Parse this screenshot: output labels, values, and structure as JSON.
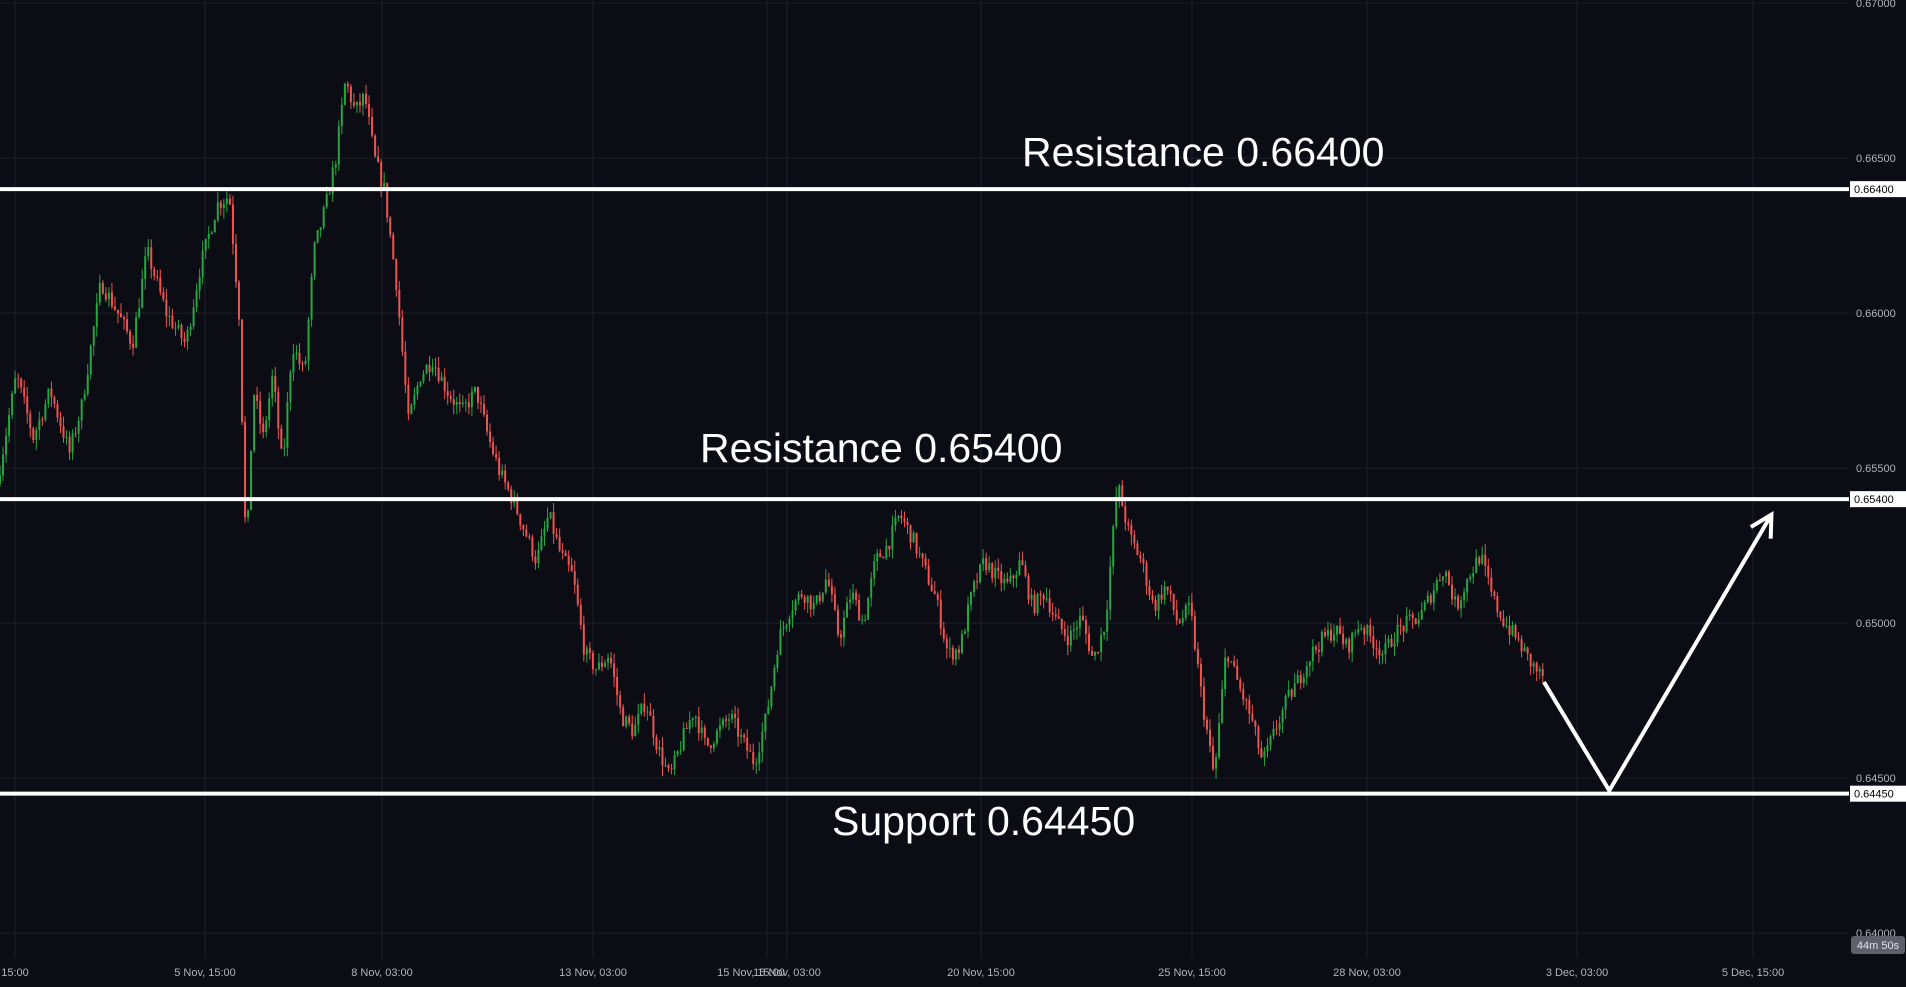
{
  "chart_data": {
    "type": "candlestick",
    "ylim": [
      0.6392,
      0.6701
    ],
    "y_ticks": [
      {
        "value": 0.67,
        "label": "0.67000"
      },
      {
        "value": 0.665,
        "label": "0.66500"
      },
      {
        "value": 0.66,
        "label": "0.66000"
      },
      {
        "value": 0.655,
        "label": "0.65500"
      },
      {
        "value": 0.65,
        "label": "0.65000"
      },
      {
        "value": 0.645,
        "label": "0.64500"
      },
      {
        "value": 0.64,
        "label": "0.64000"
      }
    ],
    "x_ticks": [
      "15:00",
      "5 Nov, 15:00",
      "8 Nov, 03:00",
      "13 Nov, 03:00",
      "15 Nov, 15:00",
      "16 Nov, 03:00",
      "20 Nov, 15:00",
      "25 Nov, 15:00",
      "28 Nov, 03:00",
      "3 Dec, 03:00",
      "5 Dec, 15:00"
    ],
    "grid": true,
    "levels": [
      {
        "value": 0.664,
        "label": "0.66400",
        "annotation": "Resistance 0.66400"
      },
      {
        "value": 0.654,
        "label": "0.65400",
        "annotation": "Resistance 0.65400"
      },
      {
        "value": 0.6445,
        "label": "0.64450",
        "annotation": "Support 0.64450"
      }
    ],
    "price_path": [
      [
        0,
        0.6545
      ],
      [
        0.8,
        0.658
      ],
      [
        1.5,
        0.656
      ],
      [
        2.2,
        0.6575
      ],
      [
        3.0,
        0.6555
      ],
      [
        3.5,
        0.657
      ],
      [
        4.3,
        0.661
      ],
      [
        5.0,
        0.66
      ],
      [
        5.6,
        0.659
      ],
      [
        6.2,
        0.662
      ],
      [
        7.0,
        0.66
      ],
      [
        7.8,
        0.659
      ],
      [
        8.4,
        0.6615
      ],
      [
        9.1,
        0.6635
      ],
      [
        9.6,
        0.6638
      ],
      [
        10.0,
        0.66
      ],
      [
        10.3,
        0.652
      ],
      [
        10.6,
        0.6575
      ],
      [
        11.0,
        0.656
      ],
      [
        11.4,
        0.658
      ],
      [
        11.8,
        0.655
      ],
      [
        12.2,
        0.659
      ],
      [
        12.7,
        0.658
      ],
      [
        13.1,
        0.662
      ],
      [
        13.6,
        0.6635
      ],
      [
        14.0,
        0.665
      ],
      [
        14.4,
        0.6675
      ],
      [
        14.8,
        0.6665
      ],
      [
        15.2,
        0.667
      ],
      [
        15.6,
        0.665
      ],
      [
        16.0,
        0.664
      ],
      [
        16.5,
        0.661
      ],
      [
        17.0,
        0.6565
      ],
      [
        17.5,
        0.658
      ],
      [
        18.0,
        0.6585
      ],
      [
        18.6,
        0.6575
      ],
      [
        19.2,
        0.6568
      ],
      [
        19.8,
        0.6575
      ],
      [
        20.3,
        0.656
      ],
      [
        20.8,
        0.6548
      ],
      [
        21.3,
        0.654
      ],
      [
        21.8,
        0.653
      ],
      [
        22.3,
        0.652
      ],
      [
        22.8,
        0.6535
      ],
      [
        23.3,
        0.6522
      ],
      [
        23.8,
        0.6515
      ],
      [
        24.3,
        0.649
      ],
      [
        24.8,
        0.6485
      ],
      [
        25.3,
        0.649
      ],
      [
        25.8,
        0.647
      ],
      [
        26.3,
        0.6465
      ],
      [
        26.8,
        0.6475
      ],
      [
        27.3,
        0.646
      ],
      [
        27.8,
        0.645
      ],
      [
        28.3,
        0.6462
      ],
      [
        28.8,
        0.6472
      ],
      [
        29.3,
        0.646
      ],
      [
        29.8,
        0.6465
      ],
      [
        30.3,
        0.647
      ],
      [
        30.8,
        0.6462
      ],
      [
        31.3,
        0.6455
      ],
      [
        31.8,
        0.647
      ],
      [
        32.3,
        0.6495
      ],
      [
        32.8,
        0.6505
      ],
      [
        33.3,
        0.651
      ],
      [
        33.8,
        0.6505
      ],
      [
        34.3,
        0.6515
      ],
      [
        34.8,
        0.6495
      ],
      [
        35.3,
        0.651
      ],
      [
        35.8,
        0.65
      ],
      [
        36.3,
        0.652
      ],
      [
        36.8,
        0.6525
      ],
      [
        37.3,
        0.6535
      ],
      [
        37.8,
        0.6528
      ],
      [
        38.3,
        0.6518
      ],
      [
        38.8,
        0.6508
      ],
      [
        39.3,
        0.649
      ],
      [
        39.8,
        0.6492
      ],
      [
        40.3,
        0.651
      ],
      [
        40.8,
        0.652
      ],
      [
        41.3,
        0.6515
      ],
      [
        41.8,
        0.6512
      ],
      [
        42.3,
        0.652
      ],
      [
        42.8,
        0.6505
      ],
      [
        43.3,
        0.651
      ],
      [
        43.8,
        0.65
      ],
      [
        44.3,
        0.6495
      ],
      [
        44.8,
        0.6502
      ],
      [
        45.3,
        0.6488
      ],
      [
        45.8,
        0.65
      ],
      [
        46.3,
        0.6545
      ],
      [
        46.8,
        0.6528
      ],
      [
        47.3,
        0.652
      ],
      [
        47.8,
        0.6505
      ],
      [
        48.3,
        0.6512
      ],
      [
        48.8,
        0.65
      ],
      [
        49.3,
        0.6505
      ],
      [
        49.8,
        0.6475
      ],
      [
        50.3,
        0.645
      ],
      [
        50.8,
        0.6492
      ],
      [
        51.3,
        0.648
      ],
      [
        51.8,
        0.647
      ],
      [
        52.3,
        0.6455
      ],
      [
        52.8,
        0.6465
      ],
      [
        53.3,
        0.6475
      ],
      [
        53.8,
        0.6482
      ],
      [
        54.3,
        0.649
      ],
      [
        54.8,
        0.6495
      ],
      [
        55.3,
        0.6498
      ],
      [
        55.8,
        0.6492
      ],
      [
        56.3,
        0.65
      ],
      [
        56.8,
        0.6495
      ],
      [
        57.3,
        0.649
      ],
      [
        57.8,
        0.6497
      ],
      [
        58.3,
        0.65
      ],
      [
        58.8,
        0.6502
      ],
      [
        59.3,
        0.651
      ],
      [
        59.8,
        0.6518
      ],
      [
        60.3,
        0.6505
      ],
      [
        60.8,
        0.6515
      ],
      [
        61.3,
        0.6522
      ],
      [
        61.8,
        0.6508
      ],
      [
        62.3,
        0.65
      ],
      [
        62.8,
        0.6495
      ],
      [
        63.3,
        0.6488
      ],
      [
        63.8,
        0.6483
      ]
    ],
    "projection": [
      {
        "x": 63.8,
        "value": 0.6481
      },
      {
        "x": 66.5,
        "value": 0.6446
      },
      {
        "x": 73.2,
        "value": 0.6535
      }
    ]
  },
  "timer": "44m 50s"
}
